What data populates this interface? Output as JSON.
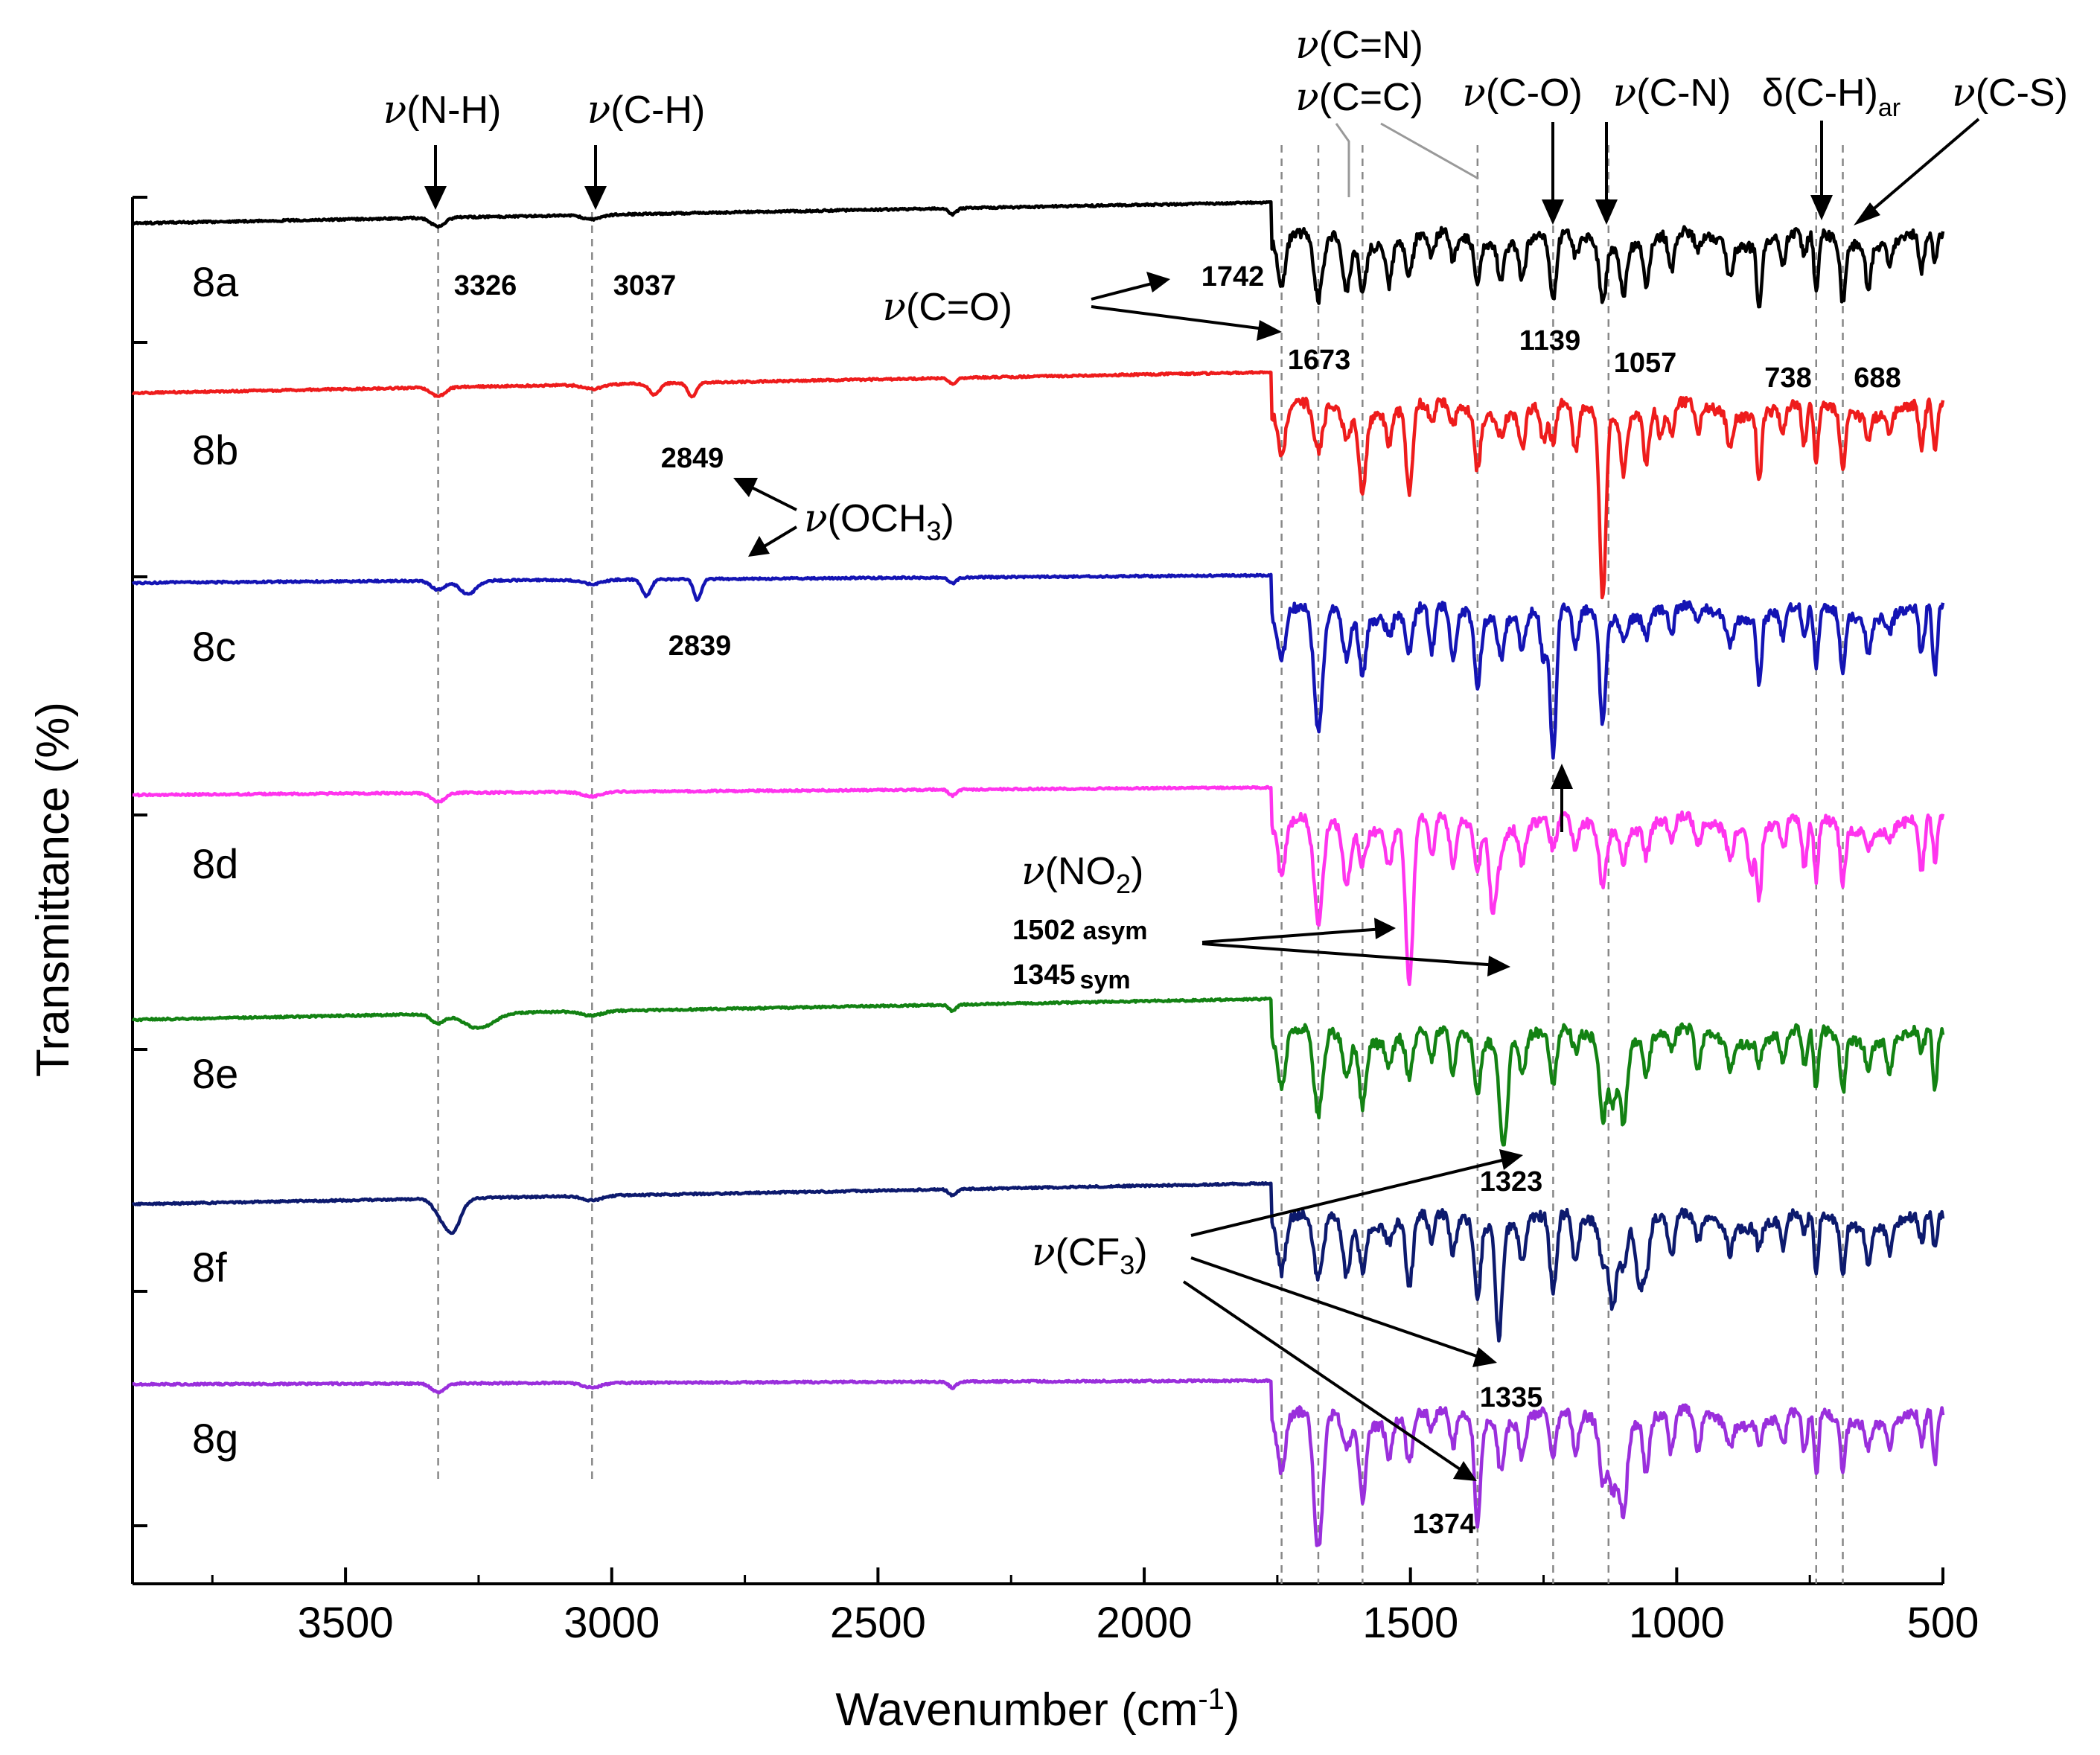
{
  "chart_data": {
    "type": "line",
    "title": "",
    "xlabel": "Wavenumber (cm-1)",
    "ylabel": "Transmittance (%)",
    "xlim": [
      3900,
      500
    ],
    "x_reversed": true,
    "x_ticks": [
      3500,
      3000,
      2500,
      2000,
      1500,
      1000,
      500
    ],
    "y_tick_labels": false,
    "grid": false,
    "series": [
      {
        "name": "8a",
        "color": "#000000",
        "offset_level": 0
      },
      {
        "name": "8b",
        "color": "#ee1c1c",
        "offset_level": 1
      },
      {
        "name": "8c",
        "color": "#1414b4",
        "offset_level": 2
      },
      {
        "name": "8d",
        "color": "#ff34ee",
        "offset_level": 3
      },
      {
        "name": "8e",
        "color": "#138213",
        "offset_level": 4
      },
      {
        "name": "8f",
        "color": "#0d1a6e",
        "offset_level": 5
      },
      {
        "name": "8g",
        "color": "#9a2fdc",
        "offset_level": 6
      }
    ],
    "reference_lines_cm1": [
      3326,
      3037,
      1742,
      1673,
      1590,
      1374,
      1232,
      1128,
      738,
      688
    ],
    "band_assignments": {
      "nu_NH": "v(N-H)",
      "nu_CH": "v(C-H)",
      "nu_CN_double": "v(C=N)",
      "nu_CC_double": "v(C=C)",
      "nu_CO": "v(C-O)",
      "nu_CN": "v(C-N)",
      "delta_CH_ar": "δ(C-H)ar",
      "nu_CS": "v(C-S)",
      "nu_CO_double": "v(C=O)",
      "nu_OCH3": "v(OCH3)",
      "nu_NO2": "v(NO2)",
      "nu_CF3": "v(CF3)"
    },
    "peak_labels": {
      "p3326": "3326",
      "p3037": "3037",
      "p1742": "1742",
      "p1673": "1673",
      "p1139": "1139",
      "p1057": "1057",
      "p738": "738",
      "p688": "688",
      "p2849": "2849",
      "p2839": "2839",
      "p1502": "1502",
      "p1502_note": "asym",
      "p1345": "1345",
      "p1345_note": "sym",
      "p1323": "1323",
      "p1335": "1335",
      "p1374": "1374"
    }
  },
  "text": {
    "nu": "ν",
    "delta": "δ",
    "NH": "(N-H)",
    "CH": "(C-H)",
    "CNd": "(C=N)",
    "CCd": "(C=C)",
    "CO": "(C-O)",
    "CN": "(C-N)",
    "CHar_pre": "(C-H)",
    "CHar_sub": "ar",
    "CS": "(C-S)",
    "COd": "(C=O)",
    "OCH_pre": "(OCH",
    "OCH_sub": "3",
    "NO_pre": "(NO",
    "NO_sub": "2",
    "CF_pre": "(CF",
    "CF_sub": "3",
    "close": ")",
    "xlab_pre": "Wavenumber (cm",
    "xlab_sup": "-1",
    "xlab_post": ")"
  }
}
